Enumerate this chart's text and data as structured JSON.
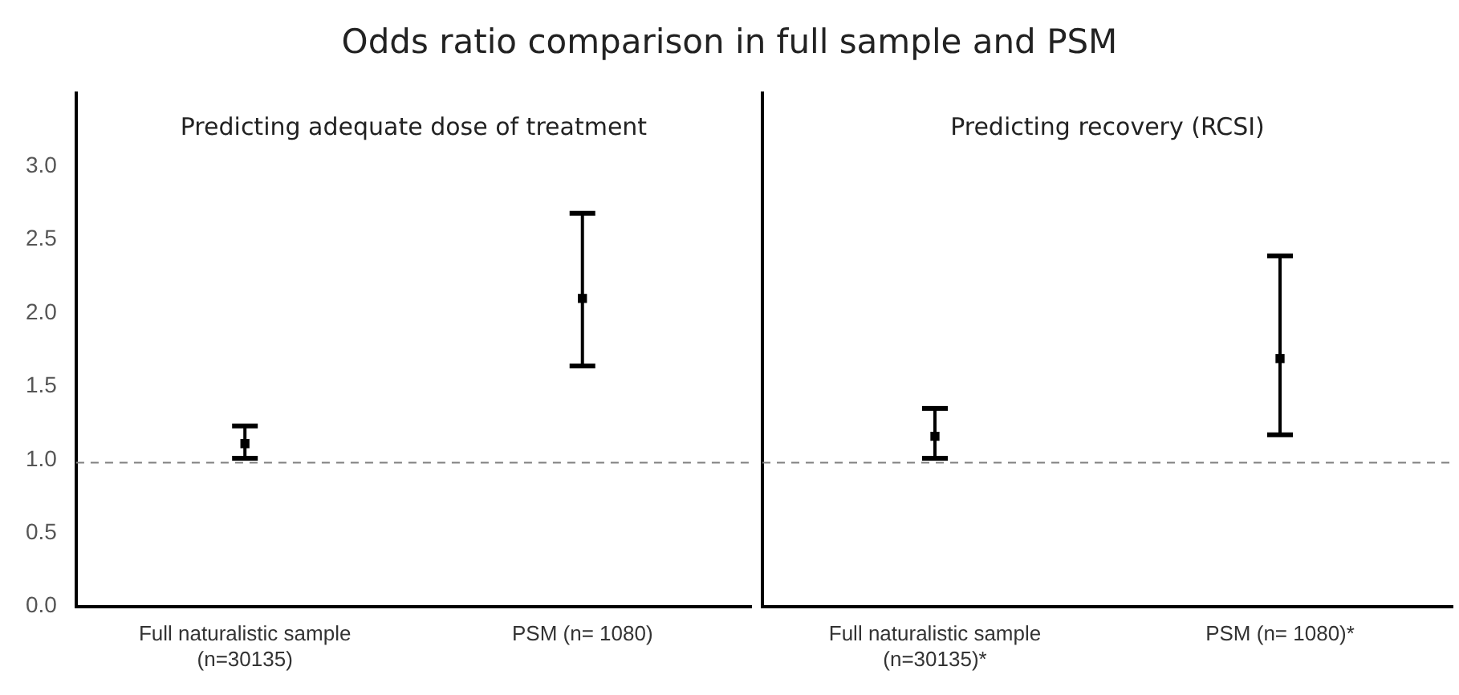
{
  "chart_data": [
    {
      "type": "scatter",
      "title": "Odds ratio comparison in full sample and PSM",
      "categories": [
        "Full naturalistic sample\n(n=30135)",
        "PSM (n= 1080)"
      ],
      "series": [
        {
          "color": "#000000",
          "values": [
            1.11,
            2.1
          ],
          "errors": [
            [
              1.01,
              1.23
            ],
            [
              1.64,
              2.68
            ]
          ]
        }
      ],
      "ylim": [
        0,
        3.5
      ],
      "yticks": [
        {
          "value": 0,
          "label": "0.0"
        },
        {
          "value": 0.5,
          "label": "0.5"
        },
        {
          "value": 1,
          "label": "1.0"
        },
        {
          "value": 1.5,
          "label": "1.5"
        },
        {
          "value": 2,
          "label": "2.0"
        },
        {
          "value": 2.5,
          "label": "2.5"
        },
        {
          "value": 3,
          "label": "3.0"
        }
      ],
      "marker": "square",
      "grid": false,
      "legend": false,
      "ref_lines": [
        {
          "axis": "y",
          "value": 0.98,
          "color": "#808080",
          "line_style": "dashed"
        }
      ],
      "annotations": [
        "Predicting adequate dose of treatment"
      ]
    },
    {
      "type": "scatter",
      "categories": [
        "Full naturalistic sample\n(n=30135)*",
        "PSM (n= 1080)*"
      ],
      "series": [
        {
          "color": "#000000",
          "values": [
            1.16,
            1.69
          ],
          "errors": [
            [
              1.01,
              1.35
            ],
            [
              1.17,
              2.39
            ]
          ]
        }
      ],
      "ylim": [
        0,
        3.5
      ],
      "marker": "square",
      "grid": false,
      "legend": false,
      "tick_labels": "x",
      "ref_lines": [
        {
          "axis": "y",
          "value": 0.98,
          "color": "#808080",
          "line_style": "dashed"
        }
      ],
      "annotations": [
        "Predicting recovery (RCSI)"
      ]
    }
  ]
}
